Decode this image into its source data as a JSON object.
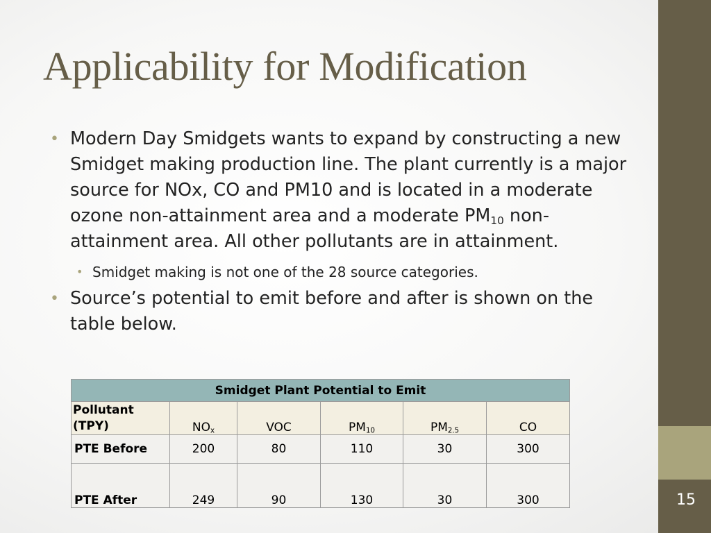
{
  "slide": {
    "title": "Applicability for Modification",
    "number": "15"
  },
  "bullets": {
    "b1_pre": "Modern Day Smidgets wants to expand by constructing a new Smidget making production line. The plant currently is a major source for NOx, CO and PM10 and is located in a moderate ozone non-attainment  area and a moderate PM",
    "b1_sub": "10",
    "b1_post": " non-attainment area. All other pollutants are in attainment.",
    "sub1": "Smidget making is not one of the 28 source categories.",
    "b2": "Source’s potential to emit before and after is shown on the table below."
  },
  "table": {
    "title": "Smidget Plant Potential to Emit",
    "row_header_label": "Pollutant (TPY)",
    "columns": [
      {
        "base": "NO",
        "sub": "x"
      },
      {
        "base": "VOC",
        "sub": ""
      },
      {
        "base": "PM",
        "sub": "10"
      },
      {
        "base": "PM",
        "sub": "2.5"
      },
      {
        "base": "CO",
        "sub": ""
      }
    ],
    "rows": [
      {
        "label": "PTE  Before",
        "values": [
          "200",
          "80",
          "110",
          "30",
          "300"
        ]
      },
      {
        "label": "PTE After",
        "values": [
          "249",
          "90",
          "130",
          "30",
          "300"
        ]
      }
    ]
  },
  "colors": {
    "sidebar_dark": "#665e48",
    "sidebar_light": "#a9a47c",
    "table_title_bg": "#94b6b6",
    "table_header_bg": "#f3efe1"
  }
}
